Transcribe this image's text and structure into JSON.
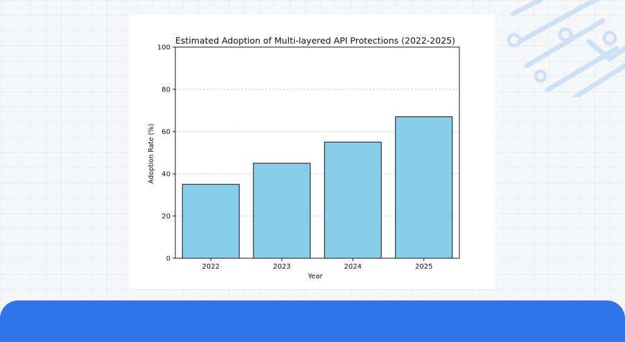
{
  "chart_data": {
    "type": "bar",
    "title": "Estimated Adoption of Multi-layered API Protections (2022-2025)",
    "xlabel": "Year",
    "ylabel": "Adoption Rate (%)",
    "categories": [
      "2022",
      "2023",
      "2024",
      "2025"
    ],
    "values": [
      35,
      45,
      55,
      67
    ],
    "ylim": [
      0,
      100
    ],
    "yticks": [
      0,
      20,
      40,
      60,
      80,
      100
    ],
    "grid": "y-dashed",
    "legend": "none",
    "colors": {
      "bar": "#87ceeb",
      "edge": "#111111",
      "grid": "#bbbbbb"
    }
  },
  "decor": {
    "banner_color": "#2f74e8",
    "corner_graphic": "circuit-lines-icon"
  }
}
